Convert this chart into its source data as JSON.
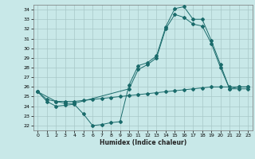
{
  "xlabel": "Humidex (Indice chaleur)",
  "bg_color": "#c8e8e8",
  "line_color": "#1a6b6b",
  "grid_color": "#a8c8c8",
  "xlim": [
    -0.5,
    23.5
  ],
  "ylim": [
    21.5,
    34.5
  ],
  "yticks": [
    22,
    23,
    24,
    25,
    26,
    27,
    28,
    29,
    30,
    31,
    32,
    33,
    34
  ],
  "xticks": [
    0,
    1,
    2,
    3,
    4,
    5,
    6,
    7,
    8,
    9,
    10,
    11,
    12,
    13,
    14,
    15,
    16,
    17,
    18,
    19,
    20,
    21,
    22,
    23
  ],
  "line1_x": [
    0,
    1,
    2,
    3,
    4,
    5,
    6,
    7,
    8,
    9,
    10,
    11,
    12,
    13,
    14,
    15,
    16,
    17,
    18,
    19,
    20,
    21,
    22,
    23
  ],
  "line1_y": [
    25.5,
    24.5,
    24.0,
    24.1,
    24.2,
    23.2,
    22.0,
    22.1,
    22.3,
    22.4,
    26.2,
    28.2,
    28.5,
    29.2,
    32.2,
    34.1,
    34.3,
    33.0,
    33.0,
    30.8,
    28.3,
    25.8,
    26.0,
    26.0
  ],
  "line2_x": [
    0,
    2,
    3,
    4,
    10,
    11,
    12,
    13,
    14,
    15,
    16,
    17,
    18,
    19,
    20,
    21,
    22,
    23
  ],
  "line2_y": [
    25.5,
    24.5,
    24.3,
    24.3,
    25.8,
    27.8,
    28.3,
    29.0,
    32.0,
    33.5,
    33.2,
    32.5,
    32.3,
    30.5,
    28.0,
    25.8,
    25.8,
    25.8
  ],
  "line3_x": [
    0,
    1,
    2,
    3,
    4,
    5,
    6,
    7,
    8,
    9,
    10,
    11,
    12,
    13,
    14,
    15,
    16,
    17,
    18,
    19,
    20,
    21,
    22,
    23
  ],
  "line3_y": [
    25.5,
    24.7,
    24.5,
    24.5,
    24.5,
    24.6,
    24.7,
    24.8,
    24.9,
    25.0,
    25.1,
    25.2,
    25.3,
    25.4,
    25.5,
    25.6,
    25.7,
    25.8,
    25.9,
    26.0,
    26.0,
    26.0,
    26.0,
    26.0
  ]
}
